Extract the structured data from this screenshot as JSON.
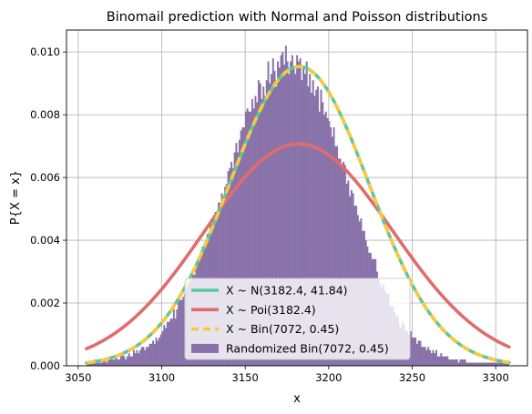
{
  "chart_data": {
    "type": "bar",
    "title": "Binomail prediction with Normal and Poisson distributions",
    "xlabel": "x",
    "ylabel": "P{X = x}",
    "xlim": [
      3043,
      3319
    ],
    "ylim": [
      0,
      0.0107
    ],
    "xticks": [
      3050,
      3100,
      3150,
      3200,
      3250,
      3300
    ],
    "yticks": [
      0.0,
      0.002,
      0.004,
      0.006,
      0.008,
      0.01
    ],
    "xtick_labels": [
      "3050",
      "3100",
      "3150",
      "3200",
      "3250",
      "3300"
    ],
    "ytick_labels": [
      "0.000",
      "0.002",
      "0.004",
      "0.006",
      "0.008",
      "0.010"
    ],
    "grid": true,
    "legend_position": "lower-center",
    "curve_x_range": [
      3055,
      3308
    ],
    "series": [
      {
        "name": "X ~ N(3182.4, 41.84)",
        "kind": "line",
        "distribution": "normal",
        "mean": 3182.4,
        "sd": 41.84,
        "color": "#5ac8a0",
        "style": "solid"
      },
      {
        "name": "X ~ Poi(3182.4)",
        "kind": "line",
        "distribution": "poisson",
        "lambda": 3182.4,
        "color": "#e06c6c",
        "style": "solid"
      },
      {
        "name": "X ~ Bin(7072, 0.45)",
        "kind": "line",
        "distribution": "binomial",
        "n": 7072,
        "p": 0.45,
        "color": "#f8c93c",
        "style": "dashed"
      },
      {
        "name": "Randomized Bin(7072, 0.45)",
        "kind": "histogram",
        "color": "#8872a9",
        "x_start": 3055,
        "x_end": 3308,
        "values": [
          0.0001,
          0.0001,
          0.0001,
          0.0001,
          0.0001,
          0.0002,
          0.0001,
          0.0001,
          0.0001,
          0.0001,
          0.0002,
          0.0002,
          0.0001,
          0.0002,
          0.0002,
          0.0002,
          0.0002,
          0.0002,
          0.0003,
          0.0002,
          0.0002,
          0.0003,
          0.0004,
          0.0003,
          0.0002,
          0.0003,
          0.0004,
          0.0003,
          0.0003,
          0.0005,
          0.0004,
          0.0005,
          0.0004,
          0.0005,
          0.0006,
          0.0006,
          0.0005,
          0.0006,
          0.0006,
          0.0007,
          0.0007,
          0.0008,
          0.0007,
          0.0009,
          0.0008,
          0.0009,
          0.001,
          0.0011,
          0.0013,
          0.0012,
          0.0014,
          0.0014,
          0.0015,
          0.0015,
          0.0018,
          0.0015,
          0.0018,
          0.0021,
          0.0021,
          0.0021,
          0.0022,
          0.0023,
          0.0025,
          0.0026,
          0.0027,
          0.0028,
          0.0029,
          0.0029,
          0.0033,
          0.0034,
          0.0034,
          0.0036,
          0.0038,
          0.0038,
          0.004,
          0.0042,
          0.0041,
          0.0045,
          0.0045,
          0.0048,
          0.0049,
          0.0047,
          0.0052,
          0.0052,
          0.0055,
          0.0054,
          0.0057,
          0.0058,
          0.0062,
          0.0063,
          0.0065,
          0.0063,
          0.0068,
          0.0071,
          0.0068,
          0.0072,
          0.0075,
          0.0076,
          0.0076,
          0.0081,
          0.0082,
          0.0081,
          0.0081,
          0.0085,
          0.0082,
          0.0086,
          0.0084,
          0.0091,
          0.009,
          0.0085,
          0.0089,
          0.0086,
          0.0091,
          0.0097,
          0.009,
          0.0093,
          0.0098,
          0.0094,
          0.0089,
          0.0097,
          0.0095,
          0.0099,
          0.01,
          0.0096,
          0.0102,
          0.0097,
          0.0093,
          0.0097,
          0.0099,
          0.0095,
          0.0093,
          0.0099,
          0.0097,
          0.0098,
          0.0091,
          0.0095,
          0.0093,
          0.0097,
          0.0089,
          0.0093,
          0.0087,
          0.0091,
          0.0086,
          0.0088,
          0.0089,
          0.0081,
          0.0088,
          0.0084,
          0.008,
          0.0081,
          0.0079,
          0.0078,
          0.0076,
          0.0073,
          0.0076,
          0.007,
          0.007,
          0.0066,
          0.0066,
          0.0063,
          0.0065,
          0.0064,
          0.0058,
          0.0059,
          0.0054,
          0.0056,
          0.0055,
          0.0051,
          0.0051,
          0.0048,
          0.0046,
          0.0047,
          0.0043,
          0.0043,
          0.004,
          0.0038,
          0.0036,
          0.0036,
          0.0034,
          0.0034,
          0.0034,
          0.003,
          0.0028,
          0.0026,
          0.0025,
          0.0026,
          0.0024,
          0.0023,
          0.0023,
          0.0019,
          0.0019,
          0.0019,
          0.0017,
          0.0016,
          0.0016,
          0.0013,
          0.0012,
          0.0014,
          0.0013,
          0.0011,
          0.0011,
          0.001,
          0.0011,
          0.0009,
          0.0009,
          0.0009,
          0.0007,
          0.0008,
          0.0008,
          0.0006,
          0.0006,
          0.0006,
          0.0005,
          0.0006,
          0.0005,
          0.0004,
          0.0005,
          0.0004,
          0.0005,
          0.0003,
          0.0003,
          0.0004,
          0.0003,
          0.0003,
          0.0003,
          0.0003,
          0.0002,
          0.0002,
          0.0002,
          0.0002,
          0.0002,
          0.0002,
          0.0001,
          0.0002,
          0.0002,
          0.0002,
          0.0002,
          0.0001,
          0.0001,
          0.0001,
          0.0001,
          0.0001,
          0.0001,
          0.0001,
          0.0001,
          0.0001,
          0.0001,
          0.0001,
          0.0001,
          0.0001,
          0.0001,
          0.0001,
          0.0001,
          0.0001,
          0.0001,
          0.0001,
          0.0001,
          0.0001,
          0.0001,
          0.0001,
          0.0001,
          0.0001,
          0.0001,
          0.0001
        ]
      }
    ]
  }
}
